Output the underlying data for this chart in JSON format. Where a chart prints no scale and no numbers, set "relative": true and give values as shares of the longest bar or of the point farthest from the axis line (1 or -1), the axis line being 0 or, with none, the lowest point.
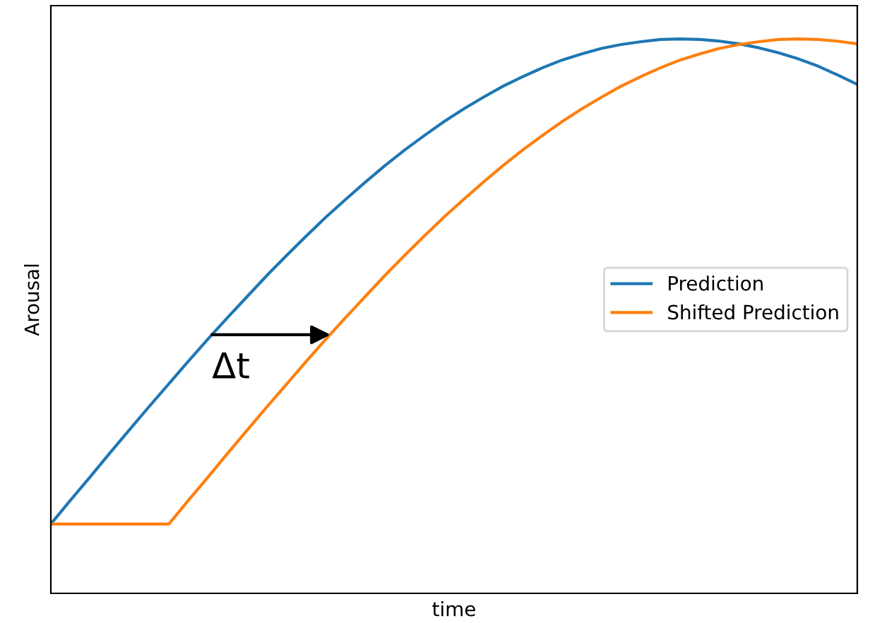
{
  "chart_data": {
    "type": "line",
    "relative": true,
    "xlabel": "time",
    "ylabel": "Arousal",
    "tick_labels": false,
    "legend": "right",
    "marker": "none",
    "line_style": "solid",
    "categories": [
      null,
      null,
      null,
      null,
      null,
      null,
      null,
      null,
      null,
      null,
      null,
      null,
      null,
      null,
      null,
      null,
      null,
      null,
      null,
      null,
      null,
      null,
      null,
      null,
      null,
      null,
      null,
      null,
      null,
      null,
      null,
      null,
      null,
      null,
      null,
      null,
      null,
      null,
      null,
      null,
      null,
      null
    ],
    "series": [
      {
        "name": "Prediction",
        "color": "#1f77b4",
        "values": [
          0.125,
          0.168,
          0.21,
          0.253,
          0.295,
          0.337,
          0.378,
          0.419,
          0.459,
          0.498,
          0.536,
          0.574,
          0.61,
          0.645,
          0.679,
          0.711,
          0.742,
          0.772,
          0.8,
          0.826,
          0.851,
          0.874,
          0.895,
          0.915,
          0.932,
          0.948,
          0.962,
          0.973,
          0.983,
          0.99,
          0.995,
          0.999,
          1.0,
          0.999,
          0.996,
          0.991,
          0.984,
          0.975,
          0.964,
          0.951,
          0.935,
          0.918
        ]
      },
      {
        "name": "Shifted Prediction",
        "color": "#ff7f0e",
        "values": [
          0.125,
          0.125,
          0.125,
          0.125,
          0.125,
          0.125,
          0.125,
          0.168,
          0.21,
          0.253,
          0.295,
          0.337,
          0.378,
          0.419,
          0.459,
          0.498,
          0.536,
          0.574,
          0.61,
          0.645,
          0.679,
          0.711,
          0.742,
          0.772,
          0.8,
          0.826,
          0.851,
          0.874,
          0.895,
          0.915,
          0.932,
          0.948,
          0.962,
          0.973,
          0.983,
          0.99,
          0.995,
          0.999,
          1.0,
          0.999,
          0.996,
          0.991
        ]
      }
    ],
    "annotations": [
      "Δt"
    ]
  }
}
